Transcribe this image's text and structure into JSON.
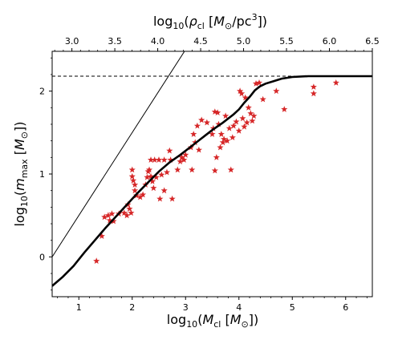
{
  "chart_data": {
    "type": "scatter",
    "bottom_axis": {
      "label_prefix": "log",
      "label_sub": "10",
      "label_open": "(",
      "label_var": "M",
      "label_var_sub": "cl",
      "label_unit_open": " [",
      "label_unit_var": "M",
      "label_unit_sub": "⊙",
      "label_close": "])",
      "xlim": [
        0.5,
        6.5
      ],
      "ticks": [
        1,
        2,
        3,
        4,
        5,
        6
      ],
      "tick_labels": [
        "1",
        "2",
        "3",
        "4",
        "5",
        "6"
      ]
    },
    "top_axis": {
      "label_prefix": "log",
      "label_sub": "10",
      "label_open": "(",
      "label_var": "ρ",
      "label_var_sub": "cl",
      "label_unit_open": " [",
      "label_unit_var": "M",
      "label_unit_sub": "⊙",
      "label_unit_rest": "/pc",
      "label_unit_sup": "3",
      "label_close": "])",
      "lim": [
        2.77,
        6.5
      ],
      "ticks": [
        3.0,
        3.5,
        4.0,
        4.5,
        5.0,
        5.5,
        6.0,
        6.5
      ],
      "tick_labels": [
        "3.0",
        "3.5",
        "4.0",
        "4.5",
        "5.0",
        "5.5",
        "6.0",
        "6.5"
      ]
    },
    "left_axis": {
      "label_prefix": "log",
      "label_sub": "10",
      "label_open": "(",
      "label_var": "m",
      "label_var_sub": "max",
      "label_unit_open": " [",
      "label_unit_var": "M",
      "label_unit_sub": "⊙",
      "label_close": "])",
      "ylim": [
        -0.48,
        2.48
      ],
      "ticks": [
        0,
        1,
        2
      ],
      "tick_labels": [
        "0",
        "1",
        "2"
      ]
    },
    "series": [
      {
        "kind": "scatter",
        "marker": "star",
        "color": "#d62728",
        "points": [
          [
            1.33,
            -0.05
          ],
          [
            1.43,
            0.25
          ],
          [
            1.48,
            0.48
          ],
          [
            1.55,
            0.5
          ],
          [
            1.58,
            0.44
          ],
          [
            1.62,
            0.52
          ],
          [
            1.65,
            0.43
          ],
          [
            1.75,
            0.52
          ],
          [
            1.85,
            0.53
          ],
          [
            1.9,
            0.5
          ],
          [
            1.92,
            0.63
          ],
          [
            1.95,
            0.58
          ],
          [
            1.98,
            0.53
          ],
          [
            2.0,
            0.97
          ],
          [
            2.02,
            0.92
          ],
          [
            2.0,
            1.05
          ],
          [
            2.05,
            0.87
          ],
          [
            2.05,
            0.8
          ],
          [
            2.08,
            0.74
          ],
          [
            2.15,
            0.72
          ],
          [
            2.2,
            0.75
          ],
          [
            2.25,
            0.87
          ],
          [
            2.28,
            0.96
          ],
          [
            2.3,
            1.03
          ],
          [
            2.32,
            1.05
          ],
          [
            2.35,
            1.17
          ],
          [
            2.35,
            0.97
          ],
          [
            2.38,
            0.91
          ],
          [
            2.4,
            0.83
          ],
          [
            2.42,
            1.17
          ],
          [
            2.45,
            0.96
          ],
          [
            2.5,
            1.17
          ],
          [
            2.52,
            0.7
          ],
          [
            2.55,
            0.99
          ],
          [
            2.6,
            1.17
          ],
          [
            2.6,
            0.8
          ],
          [
            2.65,
            1.02
          ],
          [
            2.7,
            1.28
          ],
          [
            2.72,
            1.17
          ],
          [
            2.75,
            0.7
          ],
          [
            2.85,
            1.05
          ],
          [
            2.9,
            1.15
          ],
          [
            2.93,
            1.2
          ],
          [
            2.97,
            1.17
          ],
          [
            3.0,
            1.23
          ],
          [
            3.1,
            1.32
          ],
          [
            3.12,
            1.05
          ],
          [
            3.15,
            1.48
          ],
          [
            3.18,
            1.38
          ],
          [
            3.22,
            1.58
          ],
          [
            3.25,
            1.29
          ],
          [
            3.3,
            1.65
          ],
          [
            3.4,
            1.62
          ],
          [
            3.5,
            1.48
          ],
          [
            3.52,
            1.55
          ],
          [
            3.55,
            1.75
          ],
          [
            3.55,
            1.04
          ],
          [
            3.58,
            1.2
          ],
          [
            3.6,
            1.74
          ],
          [
            3.62,
            1.6
          ],
          [
            3.65,
            1.32
          ],
          [
            3.67,
            1.48
          ],
          [
            3.7,
            1.38
          ],
          [
            3.72,
            1.42
          ],
          [
            3.75,
            1.7
          ],
          [
            3.78,
            1.4
          ],
          [
            3.82,
            1.55
          ],
          [
            3.85,
            1.05
          ],
          [
            3.88,
            1.44
          ],
          [
            3.9,
            1.58
          ],
          [
            3.95,
            1.63
          ],
          [
            4.0,
            1.52
          ],
          [
            4.02,
            2.0
          ],
          [
            4.05,
            1.97
          ],
          [
            4.07,
            1.67
          ],
          [
            4.1,
            1.57
          ],
          [
            4.12,
            1.92
          ],
          [
            4.15,
            1.62
          ],
          [
            4.18,
            1.8
          ],
          [
            4.22,
            1.73
          ],
          [
            4.25,
            1.64
          ],
          [
            4.28,
            1.7
          ],
          [
            4.32,
            2.09
          ],
          [
            4.38,
            2.1
          ],
          [
            4.45,
            1.9
          ],
          [
            4.7,
            2.0
          ],
          [
            4.85,
            1.78
          ],
          [
            5.4,
            2.05
          ],
          [
            5.4,
            1.97
          ],
          [
            5.82,
            2.1
          ]
        ]
      },
      {
        "kind": "line",
        "style": "thick-solid",
        "color": "#000000",
        "points": [
          [
            0.5,
            -0.35
          ],
          [
            0.7,
            -0.24
          ],
          [
            0.9,
            -0.11
          ],
          [
            1.1,
            0.05
          ],
          [
            1.3,
            0.2
          ],
          [
            1.5,
            0.35
          ],
          [
            1.7,
            0.49
          ],
          [
            1.9,
            0.63
          ],
          [
            2.1,
            0.77
          ],
          [
            2.3,
            0.9
          ],
          [
            2.5,
            1.03
          ],
          [
            2.7,
            1.14
          ],
          [
            2.9,
            1.23
          ],
          [
            3.1,
            1.33
          ],
          [
            3.3,
            1.43
          ],
          [
            3.5,
            1.53
          ],
          [
            3.7,
            1.62
          ],
          [
            3.9,
            1.72
          ],
          [
            4.0,
            1.78
          ],
          [
            4.1,
            1.86
          ],
          [
            4.2,
            1.93
          ],
          [
            4.3,
            2.01
          ],
          [
            4.4,
            2.06
          ],
          [
            4.5,
            2.09
          ],
          [
            4.65,
            2.12
          ],
          [
            4.8,
            2.15
          ],
          [
            5.0,
            2.17
          ],
          [
            5.3,
            2.18
          ],
          [
            5.6,
            2.18
          ],
          [
            6.0,
            2.18
          ],
          [
            6.5,
            2.18
          ]
        ]
      },
      {
        "kind": "line",
        "style": "thin-solid",
        "color": "#000000",
        "points": [
          [
            0.5,
            0.0
          ],
          [
            2.98,
            2.48
          ]
        ]
      },
      {
        "kind": "line",
        "style": "dashed",
        "color": "#000000",
        "points": [
          [
            0.5,
            2.18
          ],
          [
            6.5,
            2.18
          ]
        ]
      }
    ]
  }
}
